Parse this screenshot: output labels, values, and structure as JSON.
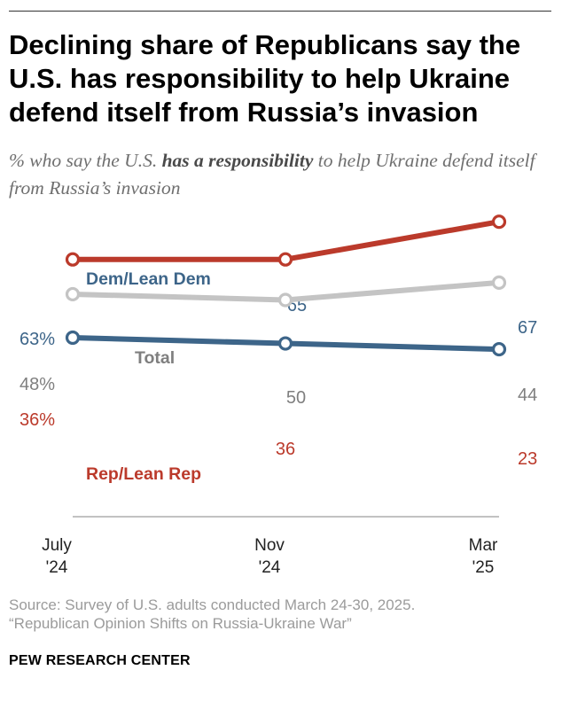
{
  "title": "Declining share of Republicans say the U.S. has responsibility to help Ukraine defend itself from Russia’s invasion",
  "subtitle": {
    "pre": "% who say the U.S. ",
    "emph": "has a responsibility",
    "post": " to help Ukraine defend itself from Russia’s invasion"
  },
  "chart_data": {
    "type": "line",
    "categories": [
      "July '24",
      "Nov '24",
      "Mar '25"
    ],
    "ylim": [
      0,
      100
    ],
    "grid": false,
    "legend": "inline labels",
    "series": [
      {
        "name": "Dem/Lean Dem",
        "values": [
          63,
          65,
          67
        ],
        "color": "#3d6589",
        "labels": [
          "63%",
          "65",
          "67"
        ]
      },
      {
        "name": "Total",
        "values": [
          48,
          50,
          44
        ],
        "color": "#c4c4c4",
        "text_color": "#7f7f7f",
        "labels": [
          "48%",
          "50",
          "44"
        ]
      },
      {
        "name": "Rep/Lean Rep",
        "values": [
          36,
          36,
          23
        ],
        "color": "#bb3a2b",
        "labels": [
          "36%",
          "36",
          "23"
        ]
      }
    ]
  },
  "axis": {
    "x_ticks": [
      [
        "July",
        "'24"
      ],
      [
        "Nov",
        "'24"
      ],
      [
        "Mar",
        "'25"
      ]
    ]
  },
  "source": {
    "line1": "Source: Survey of U.S. adults conducted March 24-30, 2025.",
    "line2": "“Republican Opinion Shifts on Russia-Ukraine War”"
  },
  "brand": "PEW RESEARCH CENTER"
}
